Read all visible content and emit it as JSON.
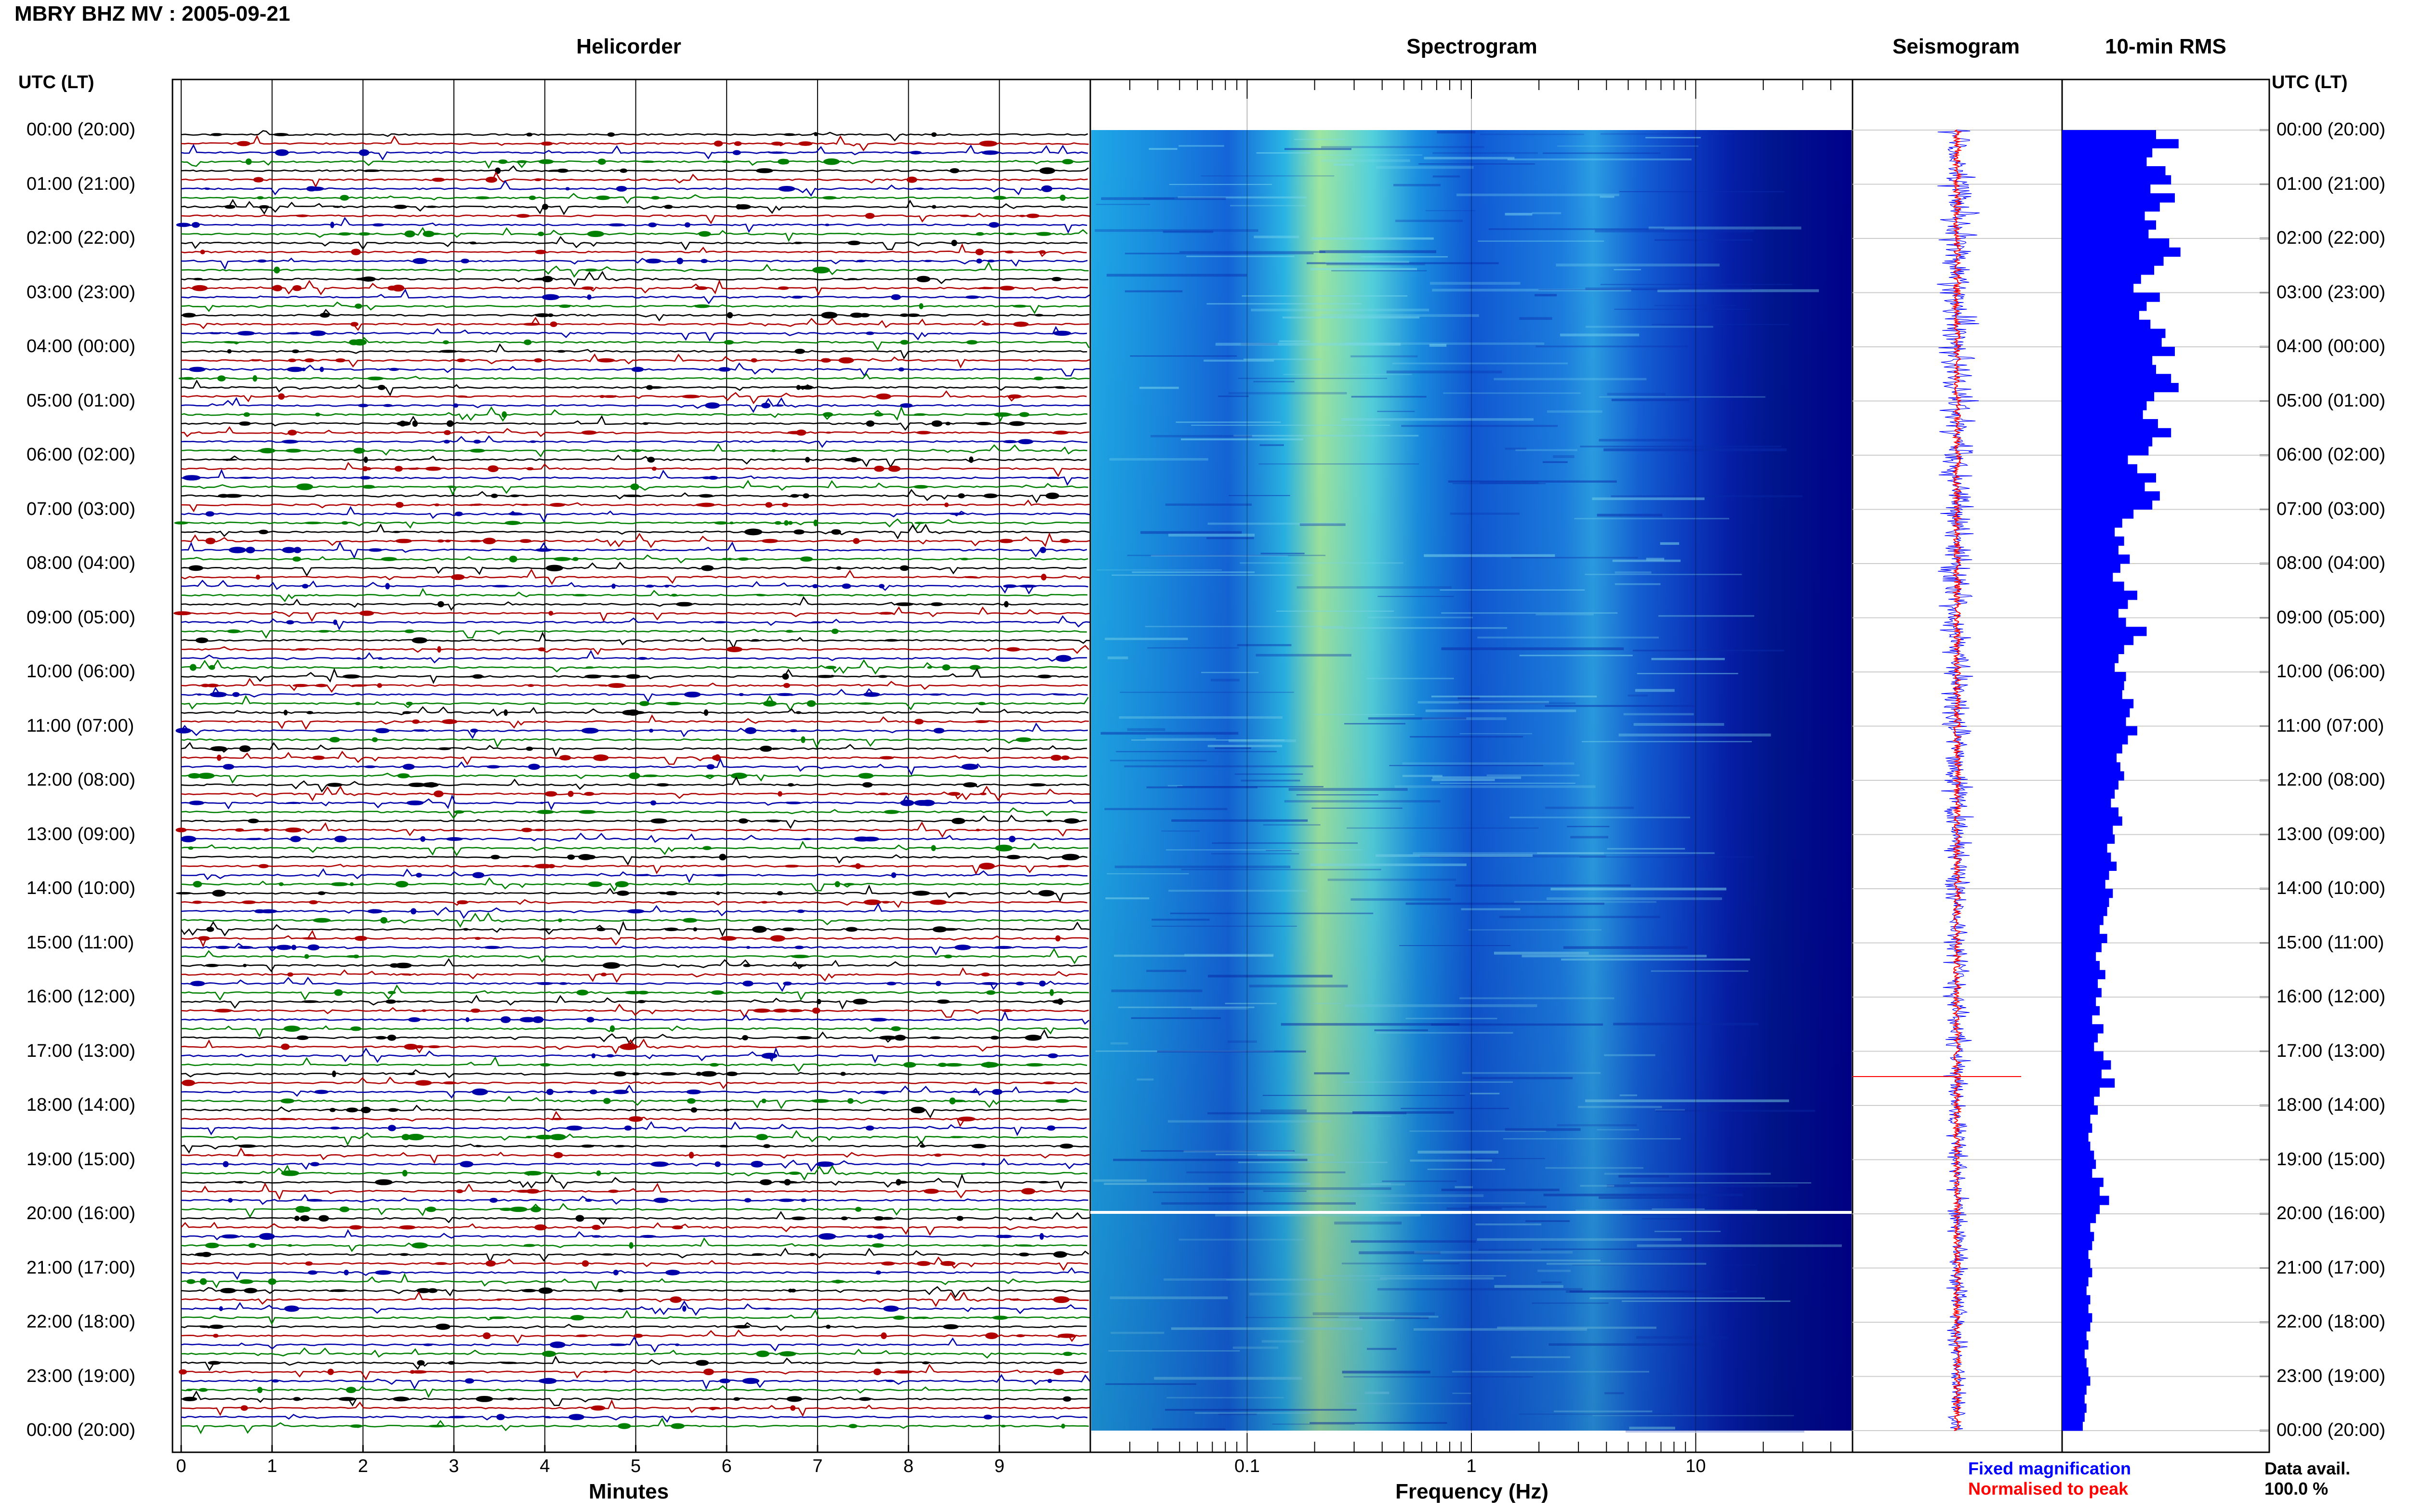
{
  "header": {
    "title": "MBRY BHZ MV : 2005-09-21"
  },
  "panels": {
    "helicorder": "Helicorder",
    "spectrogram": "Spectrogram",
    "seismogram": "Seismogram",
    "rms": "10-min RMS"
  },
  "axes": {
    "time_header_left": "UTC (LT)",
    "time_header_right": "UTC (LT)",
    "minutes_label": "Minutes",
    "frequency_label": "Frequency (Hz)"
  },
  "legend": {
    "fixed": "Fixed magnification",
    "normalised": "Normalised to peak",
    "fixed_color": "#0000ff",
    "normalised_color": "#ff0000"
  },
  "availability": {
    "label": "Data avail.",
    "value": "100.0 %"
  },
  "colors": {
    "trace_colors": [
      "#000000",
      "#b00000",
      "#0000aa",
      "#008000"
    ],
    "rms_bar": "#0000ff",
    "spectrogram_dark": "#00008b"
  },
  "chart_data": [
    {
      "type": "heatmap",
      "title": "Helicorder",
      "xlabel": "Minutes",
      "ylabel": "UTC (LT)",
      "x_ticks": [
        "0",
        "1",
        "2",
        "3",
        "4",
        "5",
        "6",
        "7",
        "8",
        "9"
      ],
      "xlim": [
        0,
        10
      ],
      "time_ticks": [
        "00:00 (20:00)",
        "01:00 (21:00)",
        "02:00 (22:00)",
        "03:00 (23:00)",
        "04:00 (00:00)",
        "05:00 (01:00)",
        "06:00 (02:00)",
        "07:00 (03:00)",
        "08:00 (04:00)",
        "09:00 (05:00)",
        "10:00 (06:00)",
        "11:00 (07:00)",
        "12:00 (08:00)",
        "13:00 (09:00)",
        "14:00 (10:00)",
        "15:00 (11:00)",
        "16:00 (12:00)",
        "17:00 (13:00)",
        "18:00 (14:00)",
        "19:00 (15:00)",
        "20:00 (16:00)",
        "21:00 (17:00)",
        "22:00 (18:00)",
        "23:00 (19:00)",
        "00:00 (20:00)"
      ],
      "traces": 144,
      "grid": true
    },
    {
      "type": "heatmap",
      "title": "Spectrogram",
      "xlabel": "Frequency (Hz)",
      "x_scale": "log",
      "x_ticks": [
        "0.1",
        "1",
        "10"
      ],
      "xlim": [
        0.02,
        50
      ]
    },
    {
      "type": "line",
      "title": "Seismogram",
      "series": [
        {
          "name": "Fixed magnification"
        },
        {
          "name": "Normalised to peak"
        }
      ]
    },
    {
      "type": "bar",
      "title": "10-min RMS",
      "orientation": "horizontal",
      "values": [
        0.5,
        0.62,
        0.48,
        0.45,
        0.55,
        0.58,
        0.47,
        0.6,
        0.52,
        0.44,
        0.5,
        0.46,
        0.57,
        0.63,
        0.54,
        0.49,
        0.42,
        0.38,
        0.52,
        0.45,
        0.41,
        0.47,
        0.55,
        0.53,
        0.6,
        0.48,
        0.5,
        0.58,
        0.62,
        0.49,
        0.45,
        0.43,
        0.51,
        0.58,
        0.48,
        0.46,
        0.35,
        0.4,
        0.5,
        0.44,
        0.52,
        0.48,
        0.38,
        0.32,
        0.28,
        0.33,
        0.3,
        0.36,
        0.31,
        0.27,
        0.33,
        0.4,
        0.35,
        0.3,
        0.34,
        0.45,
        0.38,
        0.33,
        0.3,
        0.28,
        0.34,
        0.33,
        0.32,
        0.38,
        0.36,
        0.34,
        0.4,
        0.35,
        0.32,
        0.29,
        0.31,
        0.33,
        0.3,
        0.28,
        0.26,
        0.3,
        0.32,
        0.27,
        0.28,
        0.24,
        0.26,
        0.29,
        0.25,
        0.23,
        0.27,
        0.25,
        0.24,
        0.22,
        0.2,
        0.24,
        0.21,
        0.18,
        0.2,
        0.23,
        0.19,
        0.21,
        0.18,
        0.2,
        0.16,
        0.22,
        0.19,
        0.17,
        0.22,
        0.26,
        0.21,
        0.28,
        0.2,
        0.17,
        0.19,
        0.15,
        0.16,
        0.14,
        0.15,
        0.17,
        0.18,
        0.16,
        0.22,
        0.2,
        0.25,
        0.2,
        0.18,
        0.15,
        0.17,
        0.16,
        0.14,
        0.15,
        0.16,
        0.14,
        0.13,
        0.15,
        0.14,
        0.16,
        0.15,
        0.13,
        0.14,
        0.12,
        0.13,
        0.14,
        0.15,
        0.13,
        0.12,
        0.13,
        0.12,
        0.11
      ]
    }
  ]
}
